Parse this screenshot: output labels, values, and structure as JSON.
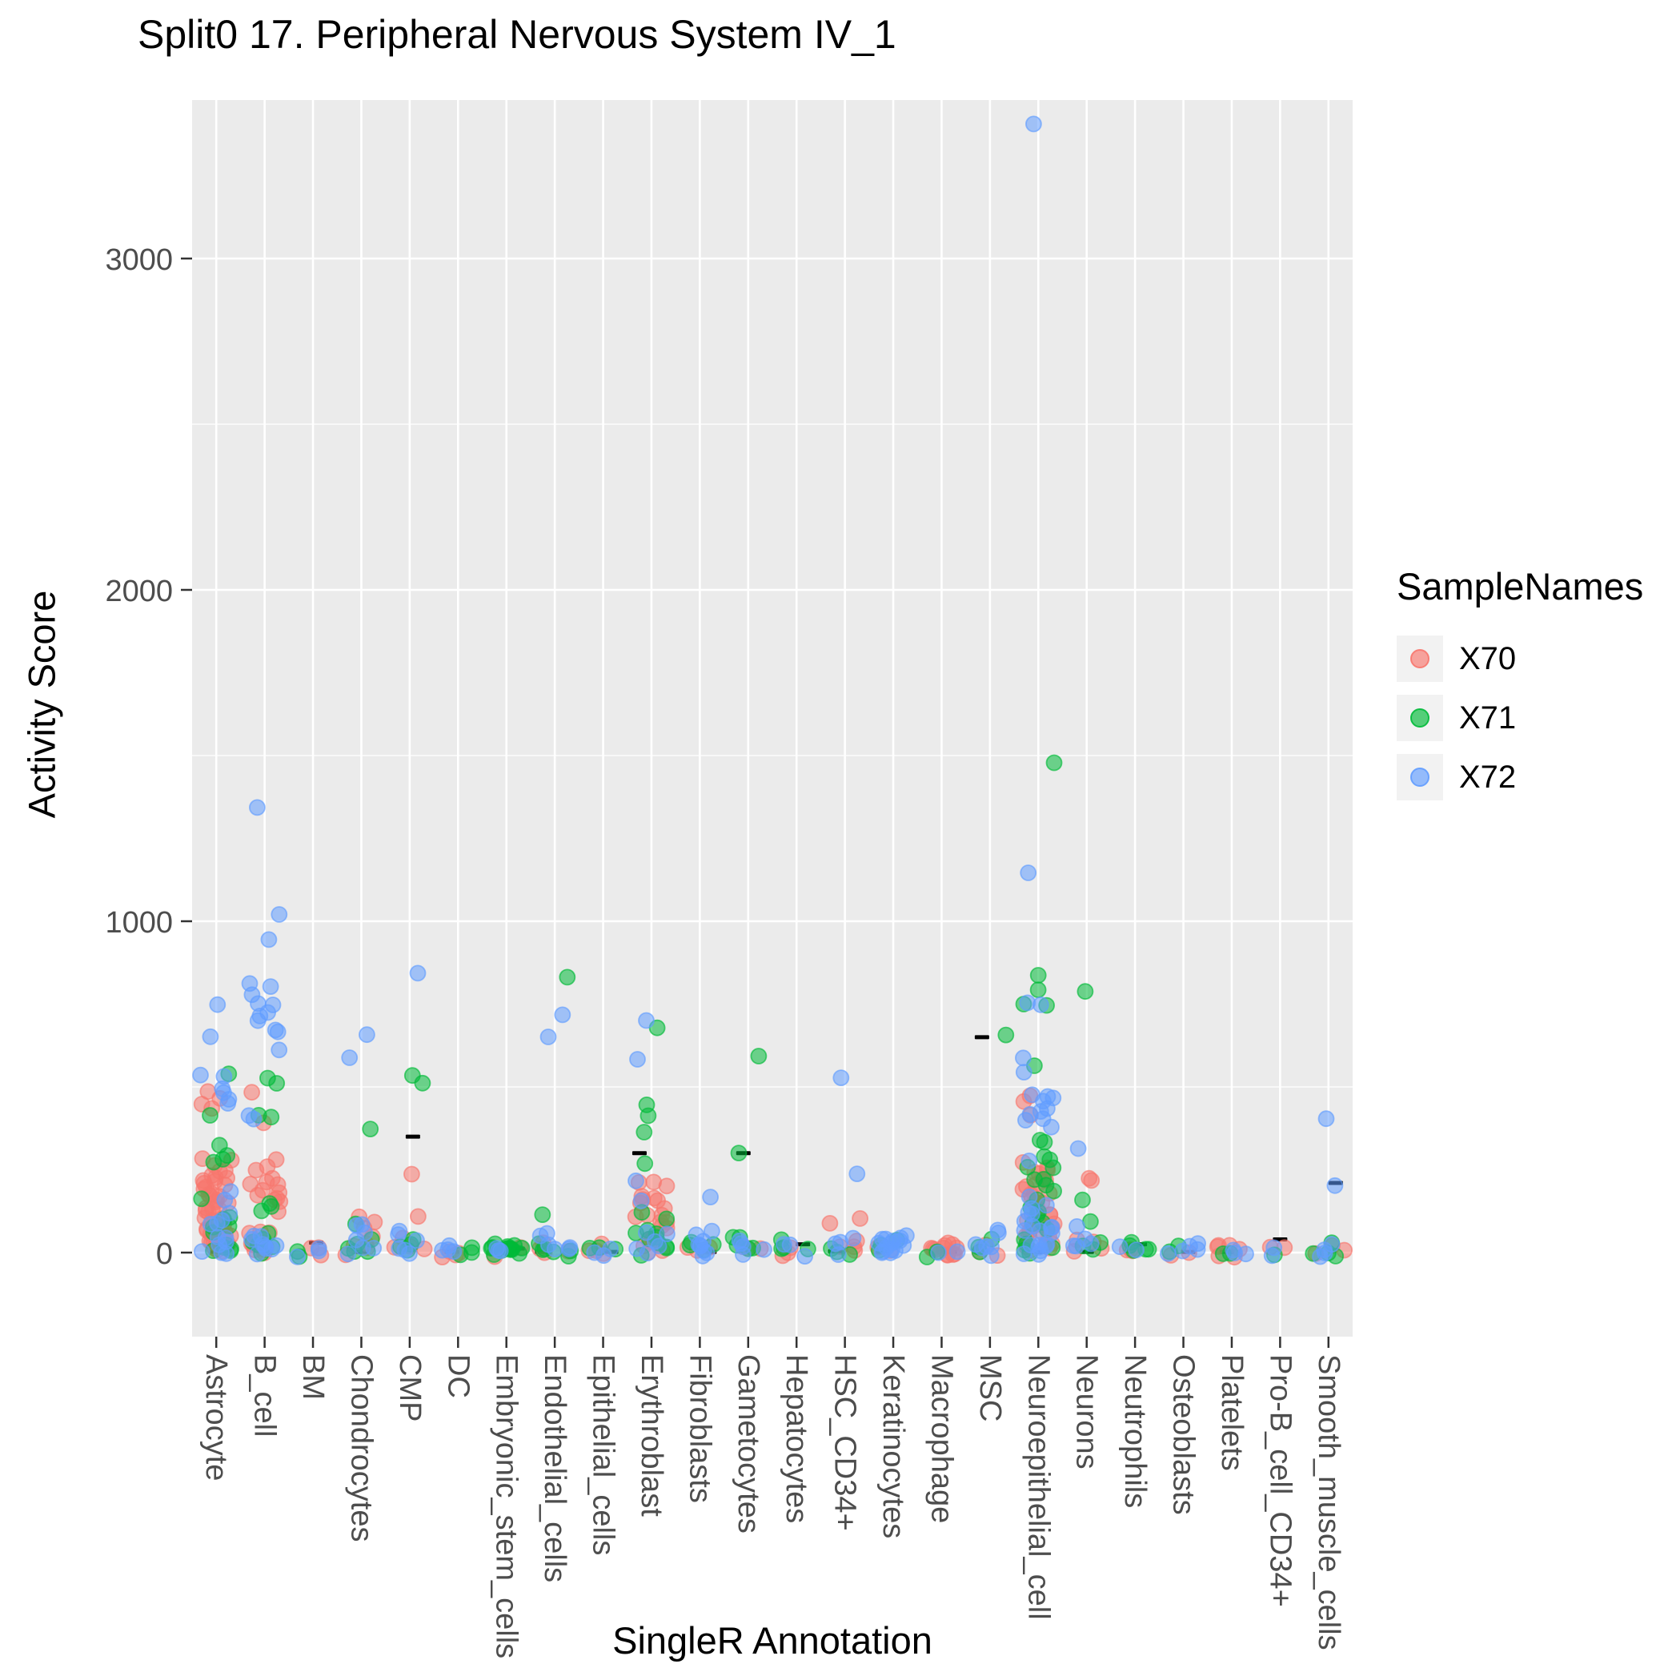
{
  "chart": {
    "title": "Split0 17. Peripheral Nervous System IV_1",
    "xlabel": "SingleR Annotation",
    "ylabel": "Activity Score"
  },
  "legend": {
    "title": "SampleNames"
  },
  "chart_data": {
    "type": "scatter",
    "jitter": true,
    "title": "Split0 17. Peripheral Nervous System IV_1",
    "xlabel": "SingleR Annotation",
    "ylabel": "Activity Score",
    "legend_title": "SampleNames",
    "legend_position": "right",
    "panel_bg": "#EBEBEB",
    "grid_color": "#FFFFFF",
    "ylim": [
      -250,
      3480
    ],
    "yticks": [
      0,
      1000,
      2000,
      3000
    ],
    "categories": [
      "Astrocyte",
      "B_cell",
      "BM",
      "Chondrocytes",
      "CMP",
      "DC",
      "Embryonic_stem_cells",
      "Endothelial_cells",
      "Epithelial_cells",
      "Erythroblast",
      "Fibroblasts",
      "Gametocytes",
      "Hepatocytes",
      "HSC_CD34+",
      "Keratinocytes",
      "Macrophage",
      "MSC",
      "Neuroepithelial_cell",
      "Neurons",
      "Neutrophils",
      "Osteoblasts",
      "Platelets",
      "Pro-B_cell_CD34+",
      "Smooth_muscle_cells"
    ],
    "series": [
      {
        "name": "X70",
        "color": "#F8766D",
        "points": {
          "Astrocyte": [
            500,
            480,
            460,
            420,
            300,
            280,
            265,
            255,
            245,
            238,
            232,
            226,
            220,
            214,
            208,
            202,
            196,
            190,
            184,
            178,
            172,
            166,
            160,
            154,
            148,
            142,
            136,
            130,
            124,
            118,
            112,
            106,
            100,
            94,
            88,
            82,
            76,
            70,
            64,
            58,
            52,
            46,
            40,
            34,
            28,
            22,
            16,
            11,
            6,
            2
          ],
          "B_cell": [
            480,
            400,
            290,
            255,
            245,
            235,
            225,
            215,
            205,
            195,
            185,
            175,
            165,
            155,
            145,
            135,
            62,
            52,
            42,
            32,
            23,
            16,
            10,
            5,
            2
          ],
          "BM": [
            6,
            3,
            1
          ],
          "Chondrocytes": [
            95,
            78,
            62,
            44,
            26,
            15,
            8,
            3
          ],
          "CMP": [
            240,
            110,
            34,
            21,
            10,
            4
          ],
          "DC": [
            12,
            7,
            3,
            1
          ],
          "Embryonic_stem_cells": [
            7,
            3
          ],
          "Endothelial_cells": [
            24,
            13,
            6,
            2
          ],
          "Epithelial_cells": [
            18,
            10,
            5,
            2
          ],
          "Erythroblast": [
            225,
            205,
            195,
            185,
            175,
            165,
            155,
            145,
            135,
            125,
            115,
            105,
            95,
            85,
            75,
            65,
            55,
            45,
            35,
            25,
            16,
            8,
            3
          ],
          "Fibroblasts": [
            23,
            12,
            5
          ],
          "Gametocytes": [
            21,
            11,
            4
          ],
          "Hepatocytes": [
            13,
            6,
            2
          ],
          "HSC_CD34+": [
            110,
            92,
            24,
            13,
            6,
            2
          ],
          "Keratinocytes": [
            13,
            6
          ],
          "Macrophage": [
            18,
            15,
            13,
            11,
            9,
            8,
            6,
            5,
            4,
            3,
            2,
            1
          ],
          "MSC": [
            13,
            6,
            2
          ],
          "Neuroepithelial_cell": [
            470,
            450,
            430,
            265,
            255,
            246,
            238,
            230,
            222,
            214,
            206,
            198,
            190,
            183,
            176,
            169,
            162,
            155,
            148,
            141,
            134,
            127,
            120,
            113,
            106,
            99,
            92,
            85,
            78,
            71,
            64,
            57,
            50,
            43,
            36,
            29,
            22,
            16,
            10,
            4
          ],
          "Neurons": [
            225,
            205,
            34,
            21,
            11,
            4
          ],
          "Neutrophils": [
            12,
            7,
            3
          ],
          "Osteoblasts": [
            6,
            2
          ],
          "Platelets": [
            10,
            7,
            5,
            3,
            2,
            1
          ],
          "Pro-B_cell_CD34+": [
            6,
            2
          ],
          "Smooth_muscle_cells": [
            12,
            5,
            2
          ]
        }
      },
      {
        "name": "X71",
        "color": "#00BA38",
        "points": {
          "Astrocyte": [
            550,
            420,
            330,
            310,
            290,
            260,
            150,
            120,
            100,
            82,
            64,
            48,
            33,
            21,
            12,
            6,
            2
          ],
          "B_cell": [
            520,
            500,
            420,
            400,
            165,
            145,
            122,
            46,
            33,
            22,
            14,
            8,
            3
          ],
          "BM": [
            4,
            2
          ],
          "Chondrocytes": [
            370,
            88,
            56,
            36,
            21,
            11,
            4
          ],
          "CMP": [
            520,
            498,
            32,
            19,
            8,
            3
          ],
          "DC": [
            9,
            5,
            2
          ],
          "Embryonic_stem_cells": [
            28,
            24,
            20,
            17,
            14,
            12,
            10,
            8,
            6,
            5,
            4,
            3,
            2,
            1
          ],
          "Endothelial_cells": [
            830,
            110,
            38,
            24,
            13,
            7,
            3,
            1
          ],
          "Epithelial_cells": [
            12,
            6,
            2
          ],
          "Erythroblast": [
            690,
            430,
            400,
            350,
            280,
            126,
            101,
            83,
            66,
            52,
            40,
            30,
            21,
            13,
            6,
            2
          ],
          "Fibroblasts": [
            34,
            21,
            11,
            4
          ],
          "Gametocytes": [
            580,
            310,
            62,
            34,
            19,
            9,
            3
          ],
          "Hepatocytes": [
            34,
            14,
            6,
            2
          ],
          "HSC_CD34+": [
            13,
            6,
            2
          ],
          "Keratinocytes": [
            22,
            10,
            4
          ],
          "Macrophage": [
            5,
            2
          ],
          "MSC": [
            660,
            34,
            21,
            9
          ],
          "Neuroepithelial_cell": [
            1470,
            830,
            800,
            760,
            730,
            580,
            340,
            320,
            300,
            282,
            264,
            246,
            228,
            210,
            192,
            175,
            158,
            141,
            124,
            107,
            90,
            74,
            58,
            43,
            29,
            17,
            8,
            3
          ],
          "Neurons": [
            780,
            162,
            92,
            24,
            13,
            5
          ],
          "Neutrophils": [
            34,
            24,
            14,
            6,
            2
          ],
          "Osteoblasts": [
            4,
            1
          ],
          "Platelets": [
            4,
            1
          ],
          "Pro-B_cell_CD34+": [
            4
          ],
          "Smooth_muscle_cells": [
            18,
            12,
            6,
            2
          ]
        }
      },
      {
        "name": "X72",
        "color": "#619CFF",
        "points": {
          "Astrocyte": [
            760,
            650,
            545,
            520,
            505,
            490,
            478,
            465,
            172,
            152,
            132,
            112,
            94,
            76,
            58,
            42,
            30,
            20,
            12,
            6,
            2
          ],
          "B_cell": [
            1360,
            1010,
            930,
            800,
            786,
            772,
            758,
            744,
            728,
            702,
            686,
            668,
            650,
            600,
            422,
            410,
            66,
            53,
            43,
            33,
            24,
            16,
            10,
            5,
            2
          ],
          "BM": [
            7,
            4,
            2
          ],
          "Chondrocytes": [
            660,
            575,
            92,
            72,
            52,
            34,
            21,
            11,
            4
          ],
          "CMP": [
            850,
            62,
            44,
            30,
            18,
            9,
            3
          ],
          "DC": [
            14,
            8,
            4,
            1
          ],
          "Embryonic_stem_cells": [
            11,
            5,
            2
          ],
          "Endothelial_cells": [
            720,
            650,
            48,
            34,
            22,
            13,
            7,
            3
          ],
          "Epithelial_cells": [
            9,
            4,
            1
          ],
          "Erythroblast": [
            690,
            600,
            230,
            160,
            64,
            45,
            27,
            15,
            7,
            3
          ],
          "Fibroblasts": [
            160,
            64,
            52,
            42,
            33,
            24,
            17,
            10,
            5,
            2
          ],
          "Gametocytes": [
            32,
            21,
            13,
            6,
            2
          ],
          "Hepatocytes": [
            17,
            9,
            3
          ],
          "HSC_CD34+": [
            530,
            240,
            34,
            21,
            11,
            4
          ],
          "Keratinocytes": [
            62,
            52,
            46,
            40,
            36,
            32,
            28,
            24,
            20,
            16,
            12,
            9,
            6,
            3,
            1
          ],
          "Macrophage": [
            7,
            3
          ],
          "MSC": [
            58,
            44,
            32,
            22,
            13,
            6,
            2
          ],
          "Neuroepithelial_cell": [
            3400,
            1130,
            770,
            750,
            580,
            560,
            480,
            470,
            458,
            446,
            434,
            422,
            410,
            398,
            386,
            374,
            268,
            152,
            142,
            132,
            122,
            112,
            102,
            92,
            82,
            72,
            62,
            52,
            44,
            36,
            28,
            22,
            16,
            11,
            7,
            3,
            1
          ],
          "Neurons": [
            330,
            64,
            44,
            24,
            13,
            5
          ],
          "Neutrophils": [
            9,
            4
          ],
          "Osteoblasts": [
            12,
            8,
            5,
            3,
            1
          ],
          "Platelets": [
            6,
            3,
            1
          ],
          "Pro-B_cell_CD34+": [
            5,
            2
          ],
          "Smooth_muscle_cells": [
            420,
            210,
            24,
            14,
            7,
            2
          ]
        }
      }
    ],
    "black_marks": [
      {
        "category": "Astrocyte",
        "value": 2,
        "dx": 0
      },
      {
        "category": "B_cell",
        "value": 2,
        "dx": 0
      },
      {
        "category": "BM",
        "value": 30,
        "dx": 4
      },
      {
        "category": "Chondrocytes",
        "value": 2,
        "dx": 0
      },
      {
        "category": "CMP",
        "value": 350,
        "dx": 4
      },
      {
        "category": "DC",
        "value": 2,
        "dx": -8
      },
      {
        "category": "Embryonic_stem_cells",
        "value": 12,
        "dx": 14
      },
      {
        "category": "Endothelial_cells",
        "value": 2,
        "dx": -16
      },
      {
        "category": "Epithelial_cells",
        "value": 2,
        "dx": 10
      },
      {
        "category": "Erythroblast",
        "value": 300,
        "dx": -15
      },
      {
        "category": "Fibroblasts",
        "value": 2,
        "dx": 12
      },
      {
        "category": "Gametocytes",
        "value": 300,
        "dx": -6
      },
      {
        "category": "Hepatocytes",
        "value": 25,
        "dx": 8
      },
      {
        "category": "HSC_CD34+",
        "value": 4,
        "dx": -12
      },
      {
        "category": "Keratinocytes",
        "value": 2,
        "dx": -14
      },
      {
        "category": "Macrophage",
        "value": 2,
        "dx": 10
      },
      {
        "category": "MSC",
        "value": 650,
        "dx": -10
      },
      {
        "category": "Neuroepithelial_cell",
        "value": 2,
        "dx": 0
      },
      {
        "category": "Neurons",
        "value": 2,
        "dx": 0
      },
      {
        "category": "Neutrophils",
        "value": 25,
        "dx": 6
      },
      {
        "category": "Osteoblasts",
        "value": 2,
        "dx": 6
      },
      {
        "category": "Platelets",
        "value": 2,
        "dx": -6
      },
      {
        "category": "Pro-B_cell_CD34+",
        "value": 40,
        "dx": 0
      },
      {
        "category": "Smooth_muscle_cells",
        "value": 210,
        "dx": 9
      }
    ]
  }
}
